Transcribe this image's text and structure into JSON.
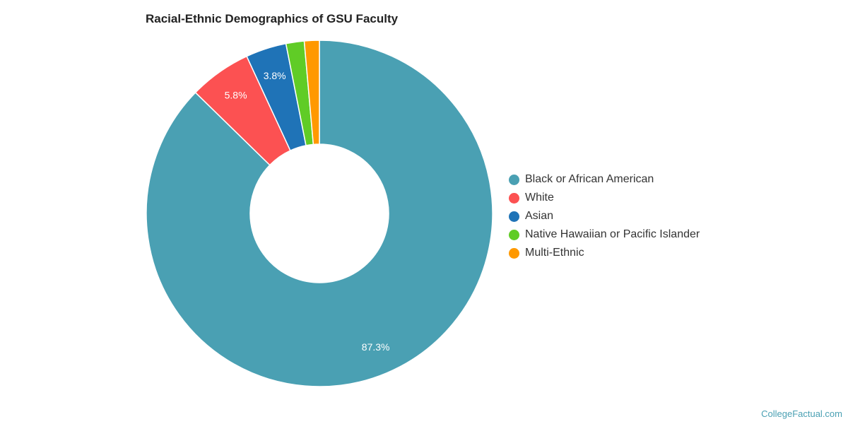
{
  "chart_data": {
    "type": "pie",
    "donut": true,
    "title": "Racial-Ethnic Demographics of GSU Faculty",
    "legend_position": "right",
    "slices": [
      {
        "label": "Black or African American",
        "value": 87.3,
        "display": "87.3%",
        "color": "#4aa0b3"
      },
      {
        "label": "White",
        "value": 5.8,
        "display": "5.8%",
        "color": "#fc5152"
      },
      {
        "label": "Asian",
        "value": 3.8,
        "display": "3.8%",
        "color": "#1f73b7"
      },
      {
        "label": "Native Hawaiian or Pacific Islander",
        "value": 1.7,
        "display": "",
        "color": "#60cc26"
      },
      {
        "label": "Multi-Ethnic",
        "value": 1.4,
        "display": "",
        "color": "#ff9900"
      }
    ]
  },
  "credit": "CollegeFactual.com"
}
